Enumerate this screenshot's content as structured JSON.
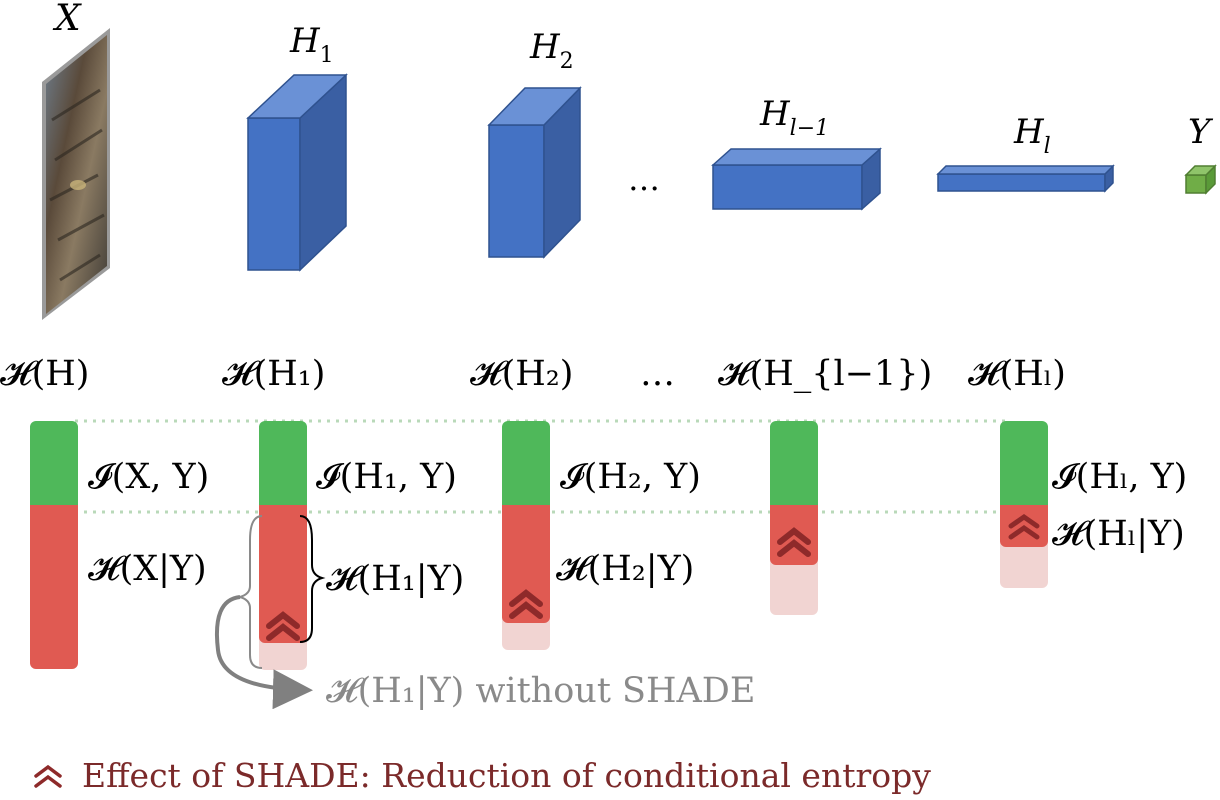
{
  "colors": {
    "cube_front": "#4472c4",
    "cube_side": "#3a5fa3",
    "cube_top": "#6a91d6",
    "output_green": "#70ad47",
    "info_green": "#4fb85a",
    "cond_red": "#e05a52",
    "faded_red": "#f1d4d2",
    "chevron": "#8e2a2a",
    "legend_text": "#7b2a2a",
    "annotation_gray": "#808080",
    "dotted_line": "#b9d9b9"
  },
  "network": {
    "input_label": "X",
    "layers": [
      {
        "label_main": "H",
        "label_sub": "1"
      },
      {
        "label_main": "H",
        "label_sub": "2"
      },
      {
        "label_main": "H",
        "label_sub": "l−1"
      },
      {
        "label_main": "H",
        "label_sub": "l"
      }
    ],
    "ellipsis": "…",
    "output_label": "Y"
  },
  "entropy_headers": [
    "𝓗(H)",
    "𝓗(H₁)",
    "𝓗(H₂)",
    "…",
    "𝓗(H_{l−1})",
    "𝓗(Hₗ)"
  ],
  "bars": [
    {
      "info_label": "𝓘(X, Y)",
      "cond_label": "𝓗(X|Y)",
      "info_level": 0.34,
      "cond_level": 0.66,
      "faded_level": 0
    },
    {
      "info_label": "𝓘(H₁, Y)",
      "cond_label": "𝓗(H₁|Y)",
      "info_level": 0.34,
      "cond_level": 0.52,
      "faded_level": 0.1
    },
    {
      "info_label": "𝓘(H₂, Y)",
      "cond_label": "𝓗(H₂|Y)",
      "info_level": 0.34,
      "cond_level": 0.42,
      "faded_level": 0.12
    },
    {
      "info_label": "",
      "cond_label": "",
      "info_level": 0.34,
      "cond_level": 0.21,
      "faded_level": 0.2
    },
    {
      "info_label": "𝓘(Hₗ, Y)",
      "cond_label": "𝓗(Hₗ|Y)",
      "info_level": 0.34,
      "cond_level": 0.12,
      "faded_level": 0.18
    }
  ],
  "annotation": "𝓗(H₁|Y) without SHADE",
  "legend": {
    "icon": "double-chevron-up-icon",
    "text": "Effect of SHADE: Reduction of conditional entropy"
  }
}
